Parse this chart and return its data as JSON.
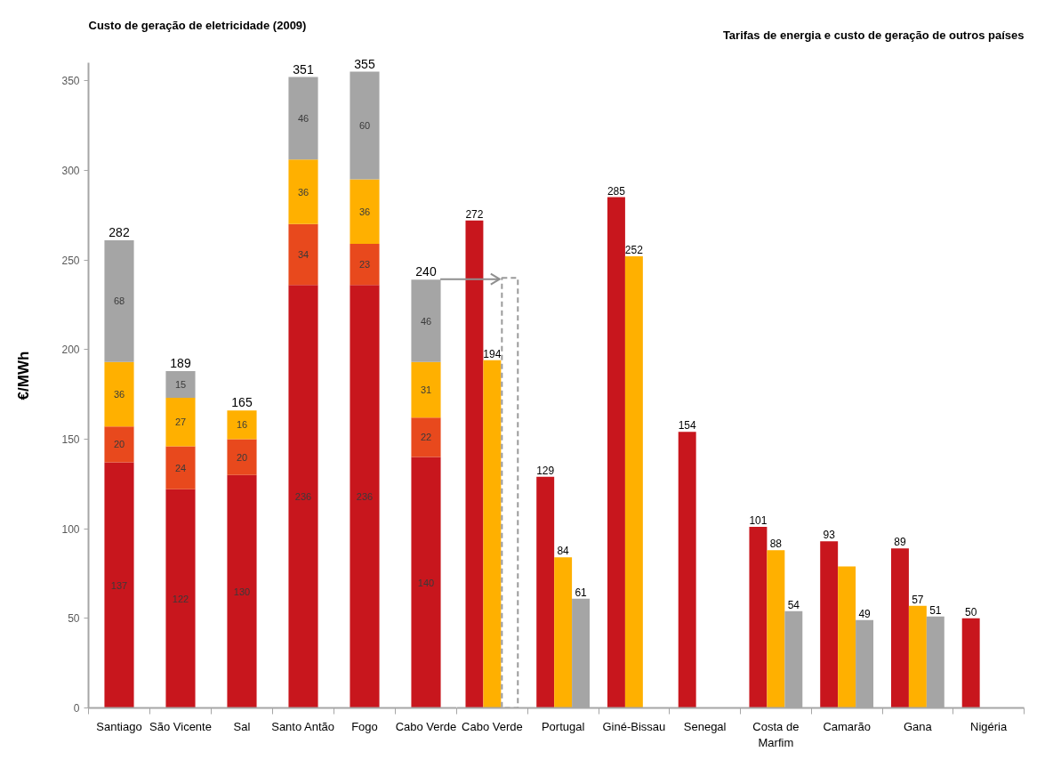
{
  "chart_data": [
    {
      "type": "bar",
      "stacked": true,
      "title": "Custo de geração de eletricidade (2009)",
      "ylabel": "€/MWh",
      "categories": [
        "Santiago",
        "São Vicente",
        "Sal",
        "Santo Antão",
        "Fogo",
        "Cabo Verde"
      ],
      "series": [
        {
          "color": "#c8161d",
          "values": [
            137,
            122,
            130,
            236,
            236,
            140
          ]
        },
        {
          "color": "#e8491d",
          "values": [
            20,
            24,
            20,
            34,
            23,
            22
          ]
        },
        {
          "color": "#ffb000",
          "values": [
            36,
            27,
            16,
            36,
            36,
            31
          ]
        },
        {
          "color": "#a5a5a5",
          "values": [
            68,
            15,
            null,
            46,
            60,
            46
          ]
        }
      ],
      "ylim": [
        0,
        360
      ],
      "yticks": [
        0,
        50,
        100,
        150,
        200,
        250,
        300,
        350
      ],
      "data_labels": true,
      "totals": [
        null,
        "189",
        "165",
        "351",
        "355",
        "240"
      ],
      "annotations": [
        {
          "text": "282",
          "x": "Santiago",
          "y": 261
        }
      ]
    },
    {
      "type": "bar",
      "title": "Tarifas de energia e custo de geração de outros países",
      "categories": [
        "Cabo Verde",
        "Portugal",
        "Giné-Bissau",
        "Senegal",
        "Costa de Marfim",
        "Camarão",
        "Gana",
        "Nigéria"
      ],
      "series": [
        {
          "color": "#c8161d",
          "values": [
            272,
            129,
            285,
            154,
            101,
            93,
            89,
            50
          ],
          "value_labels": [
            "272",
            "129",
            "285",
            "154",
            "101",
            "93",
            "89",
            "50"
          ]
        },
        {
          "color": "#ffb000",
          "values": [
            194,
            84,
            252,
            null,
            88,
            79,
            57,
            null
          ],
          "value_labels": [
            "194",
            "84",
            "252",
            null,
            "88",
            null,
            "57",
            null
          ]
        },
        {
          "color": "#a5a5a5",
          "values": [
            null,
            61,
            null,
            null,
            54,
            49,
            51,
            null
          ],
          "value_labels": [
            null,
            "61",
            null,
            null,
            "54",
            "49",
            "51",
            null
          ]
        },
        {
          "color": "#9a9a9a",
          "line_style": "dashed",
          "values": [
            240,
            null,
            null,
            null,
            null,
            null,
            null,
            null
          ]
        }
      ],
      "tick_labels": "x"
    }
  ]
}
